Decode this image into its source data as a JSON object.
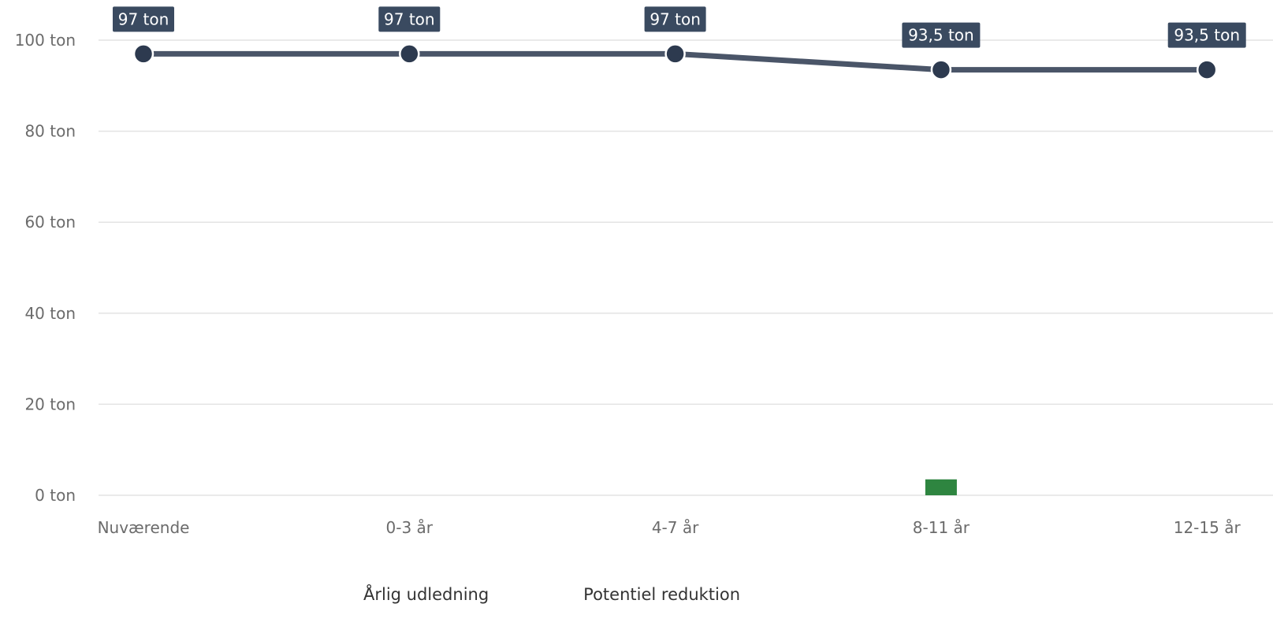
{
  "chart_data": {
    "type": "line",
    "categories": [
      "Nuværende",
      "0-3 år",
      "4-7 år",
      "8-11 år",
      "12-15 år"
    ],
    "y_ticks": [
      "0 ton",
      "20 ton",
      "40 ton",
      "60 ton",
      "80 ton",
      "100 ton"
    ],
    "y_tick_values": [
      0,
      20,
      40,
      60,
      80,
      100
    ],
    "ylim": [
      0,
      100
    ],
    "grid": true,
    "legend_placement": "bottom-center",
    "series": [
      {
        "name": "Årlig udledning",
        "kind": "line",
        "color": "#4a5568",
        "marker_color": "#2d3a4f",
        "values": [
          97,
          97,
          97,
          93.5,
          93.5
        ],
        "labels": [
          "97 ton",
          "97 ton",
          "97 ton",
          "93,5 ton",
          "93,5 ton"
        ]
      },
      {
        "name": "Potentiel reduktion",
        "kind": "bar",
        "color": "#2e8540",
        "values": [
          0,
          0,
          0,
          3.5,
          0
        ]
      }
    ],
    "label_bg": "#3a4a60"
  }
}
